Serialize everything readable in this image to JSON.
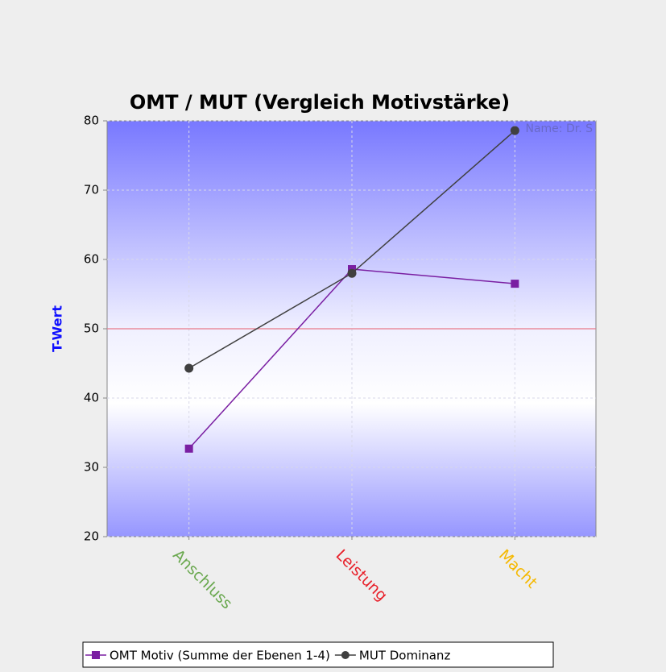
{
  "chart_data": {
    "type": "line",
    "title": "OMT / MUT (Vergleich Motivstärke)",
    "y_label": "T-Wert",
    "annotation": "Name: Dr. S",
    "categories": [
      "Anschluss",
      "Leistung",
      "Macht"
    ],
    "category_colors": [
      "#6aa84f",
      "#e8202a",
      "#f5b800"
    ],
    "series": [
      {
        "name": "OMT Motiv (Summe der Ebenen 1-4)",
        "color": "#7a1fa2",
        "marker": "square",
        "values": [
          32.7,
          58.6,
          56.5
        ]
      },
      {
        "name": "MUT Dominanz",
        "color": "#404040",
        "marker": "circle",
        "values": [
          44.3,
          58.0,
          78.6
        ]
      }
    ],
    "ylim": [
      20,
      80
    ],
    "yticks": [
      20,
      30,
      40,
      50,
      60,
      70,
      80
    ],
    "grid": true,
    "reference_line": {
      "value": 50,
      "color": "#e87a8a"
    }
  }
}
